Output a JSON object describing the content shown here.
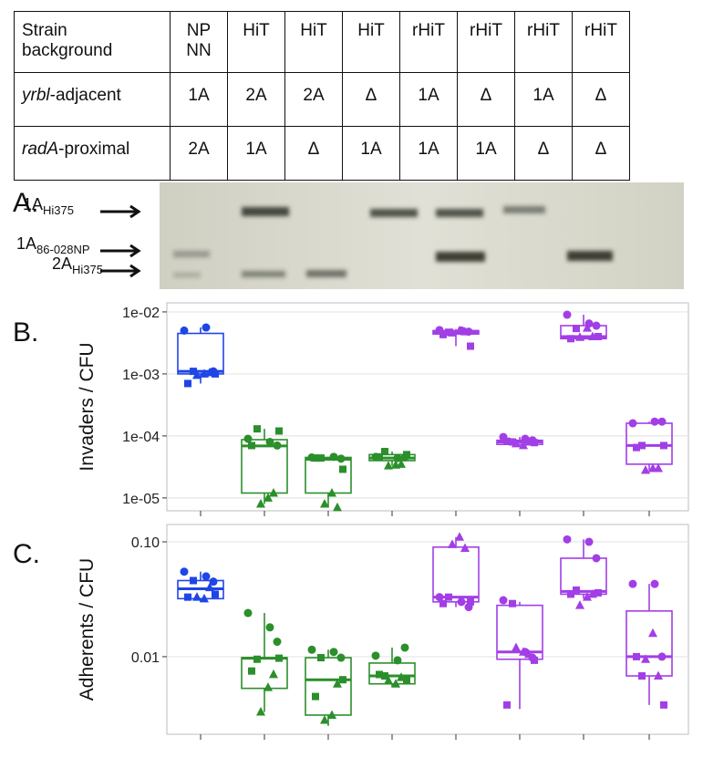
{
  "table": {
    "header": [
      "Strain\nbackground",
      "NP\nNN",
      "HiT",
      "HiT",
      "HiT",
      "rHiT",
      "rHiT",
      "rHiT",
      "rHiT"
    ],
    "rows": [
      {
        "label": {
          "gene": "yrbl",
          "suffix": "-adjacent"
        },
        "cells": [
          "1A",
          "2A",
          "2A",
          "Δ",
          "1A",
          "Δ",
          "1A",
          "Δ"
        ]
      },
      {
        "label": {
          "gene": "radA",
          "suffix": "-proximal"
        },
        "cells": [
          "2A",
          "1A",
          "Δ",
          "1A",
          "1A",
          "1A",
          "Δ",
          "Δ"
        ]
      }
    ]
  },
  "gel": {
    "panel": "A.",
    "labels": [
      {
        "main": "1A",
        "sub": "Hi375"
      },
      {
        "main": "1A",
        "sub": "86-028NP"
      },
      {
        "main": "2A",
        "sub": "Hi375"
      }
    ]
  },
  "chart_data": [
    {
      "type": "box",
      "panel": "B.",
      "ylabel": "Invaders / CFU",
      "log": true,
      "grid": true,
      "ylim": [
        6.2e-06,
        0.014
      ],
      "yticks": [
        {
          "value": 0.01,
          "label": "1e-02"
        },
        {
          "value": 0.001,
          "label": "1e-03"
        },
        {
          "value": 0.0001,
          "label": "1e-04"
        },
        {
          "value": 1e-05,
          "label": "1e-05"
        }
      ],
      "markers": [
        "circle",
        "square",
        "triangle"
      ],
      "groups": [
        {
          "color": "#1f45e6",
          "whislo": 0.0007,
          "q1": 0.001,
          "median": 0.0011,
          "q3": 0.0045,
          "whishi": 0.0056,
          "points": [
            [
              0.005,
              0.0056,
              0.0011
            ],
            [
              0.0011,
              0.001,
              0.0007
            ],
            [
              0.001,
              0.00095,
              0.00105
            ]
          ]
        },
        {
          "color": "#2b8f2b",
          "whislo": 8e-06,
          "q1": 1.2e-05,
          "median": 6.9e-05,
          "q3": 8.7e-05,
          "whishi": 0.00013,
          "points": [
            [
              9e-05,
              8e-05,
              7e-05
            ],
            [
              0.00013,
              0.00012,
              7e-05
            ],
            [
              1e-05,
              8e-06,
              1.2e-05
            ]
          ]
        },
        {
          "color": "#2b8f2b",
          "whislo": 7e-06,
          "q1": 1.2e-05,
          "median": 4.2e-05,
          "q3": 4.5e-05,
          "whishi": 4.6e-05,
          "points": [
            [
              4.5e-05,
              4.6e-05,
              4.3e-05
            ],
            [
              4.4e-05,
              2.9e-05,
              4.4e-05
            ],
            [
              1.2e-05,
              8e-06,
              7e-06
            ]
          ]
        },
        {
          "color": "#2b8f2b",
          "whislo": 3.3e-05,
          "q1": 4e-05,
          "median": 4.4e-05,
          "q3": 5e-05,
          "whishi": 5.6e-05,
          "points": [
            [
              4.6e-05,
              4.4e-05,
              4.5e-05
            ],
            [
              5.6e-05,
              5e-05,
              4.6e-05
            ],
            [
              3.4e-05,
              3.3e-05,
              3.5e-05
            ]
          ]
        },
        {
          "color": "#a23ee6",
          "whislo": 0.0028,
          "q1": 0.0044,
          "median": 0.0047,
          "q3": 0.005,
          "whishi": 0.0053,
          "points": [
            [
              0.0051,
              0.005,
              0.0048
            ],
            [
              0.0047,
              0.0028,
              0.0043
            ],
            [
              0.005,
              0.0046,
              0.0048
            ]
          ]
        },
        {
          "color": "#a23ee6",
          "whislo": 6.7e-05,
          "q1": 7.3e-05,
          "median": 8e-05,
          "q3": 8.5e-05,
          "whishi": 9.6e-05,
          "points": [
            [
              9.6e-05,
              9e-05,
              8.5e-05
            ],
            [
              8e-05,
              7.8e-05,
              8.2e-05
            ],
            [
              7e-05,
              7.5e-05,
              8e-05
            ]
          ]
        },
        {
          "color": "#a23ee6",
          "whislo": 0.0035,
          "q1": 0.0037,
          "median": 0.004,
          "q3": 0.006,
          "whishi": 0.009,
          "points": [
            [
              0.009,
              0.0065,
              0.006
            ],
            [
              0.0054,
              0.004,
              0.0037
            ],
            [
              0.0055,
              0.0039,
              0.004
            ]
          ]
        },
        {
          "color": "#a23ee6",
          "whislo": 2.8e-05,
          "q1": 3.5e-05,
          "median": 7e-05,
          "q3": 0.00016,
          "whishi": 0.00017,
          "points": [
            [
              0.00016,
              0.00017,
              0.00017
            ],
            [
              7e-05,
              7e-05,
              6.5e-05
            ],
            [
              3e-05,
              2.8e-05,
              3e-05
            ]
          ]
        }
      ]
    },
    {
      "type": "box",
      "panel": "C.",
      "ylabel": "Adherents / CFU",
      "log": true,
      "grid": true,
      "ylim": [
        0.00211,
        0.1416
      ],
      "yticks": [
        {
          "value": 0.1,
          "label": "0.10"
        },
        0.01
      ],
      "markers": [
        "circle",
        "square",
        "triangle"
      ],
      "groups": [
        {
          "color": "#1f45e6",
          "whislo": 0.03,
          "q1": 0.032,
          "median": 0.039,
          "q3": 0.046,
          "whishi": 0.055,
          "points": [
            [
              0.055,
              0.05,
              0.045
            ],
            [
              0.046,
              0.035,
              0.033
            ],
            [
              0.032,
              0.033,
              0.04
            ]
          ]
        },
        {
          "color": "#2b8f2b",
          "whislo": 0.0033,
          "q1": 0.0053,
          "median": 0.0097,
          "q3": 0.0098,
          "whishi": 0.024,
          "points": [
            [
              0.024,
              0.018,
              0.0135
            ],
            [
              0.0095,
              0.0097,
              0.0075
            ],
            [
              0.0054,
              0.0033,
              0.007
            ]
          ]
        },
        {
          "color": "#2b8f2b",
          "whislo": 0.0025,
          "q1": 0.0031,
          "median": 0.0063,
          "q3": 0.0098,
          "whishi": 0.0115,
          "points": [
            [
              0.0115,
              0.011,
              0.0098
            ],
            [
              0.0098,
              0.0063,
              0.0045
            ],
            [
              0.0031,
              0.0028,
              0.0058
            ]
          ]
        },
        {
          "color": "#2b8f2b",
          "whislo": 0.0055,
          "q1": 0.0058,
          "median": 0.0068,
          "q3": 0.0088,
          "whishi": 0.012,
          "points": [
            [
              0.0102,
              0.0093,
              0.012
            ],
            [
              0.0068,
              0.0062,
              0.007
            ],
            [
              0.0058,
              0.0062,
              0.0066
            ]
          ]
        },
        {
          "color": "#a23ee6",
          "whislo": 0.027,
          "q1": 0.03,
          "median": 0.033,
          "q3": 0.09,
          "whishi": 0.11,
          "points": [
            [
              0.033,
              0.03,
              0.027
            ],
            [
              0.033,
              0.03,
              0.029
            ],
            [
              0.11,
              0.095,
              0.088
            ]
          ]
        },
        {
          "color": "#a23ee6",
          "whislo": 0.0035,
          "q1": 0.0095,
          "median": 0.011,
          "q3": 0.028,
          "whishi": 0.03,
          "points": [
            [
              0.031,
              0.011,
              0.0098
            ],
            [
              0.029,
              0.0093,
              0.0038
            ],
            [
              0.011,
              0.012,
              0.0105
            ]
          ]
        },
        {
          "color": "#a23ee6",
          "whislo": 0.032,
          "q1": 0.035,
          "median": 0.037,
          "q3": 0.072,
          "whishi": 0.105,
          "points": [
            [
              0.105,
              0.1,
              0.072
            ],
            [
              0.038,
              0.036,
              0.035
            ],
            [
              0.033,
              0.028,
              0.035
            ]
          ]
        },
        {
          "color": "#a23ee6",
          "whislo": 0.0038,
          "q1": 0.0068,
          "median": 0.01,
          "q3": 0.025,
          "whishi": 0.043,
          "points": [
            [
              0.043,
              0.043,
              0.01
            ],
            [
              0.0068,
              0.0038,
              0.01
            ],
            [
              0.016,
              0.0095,
              0.0068
            ]
          ]
        }
      ]
    }
  ]
}
